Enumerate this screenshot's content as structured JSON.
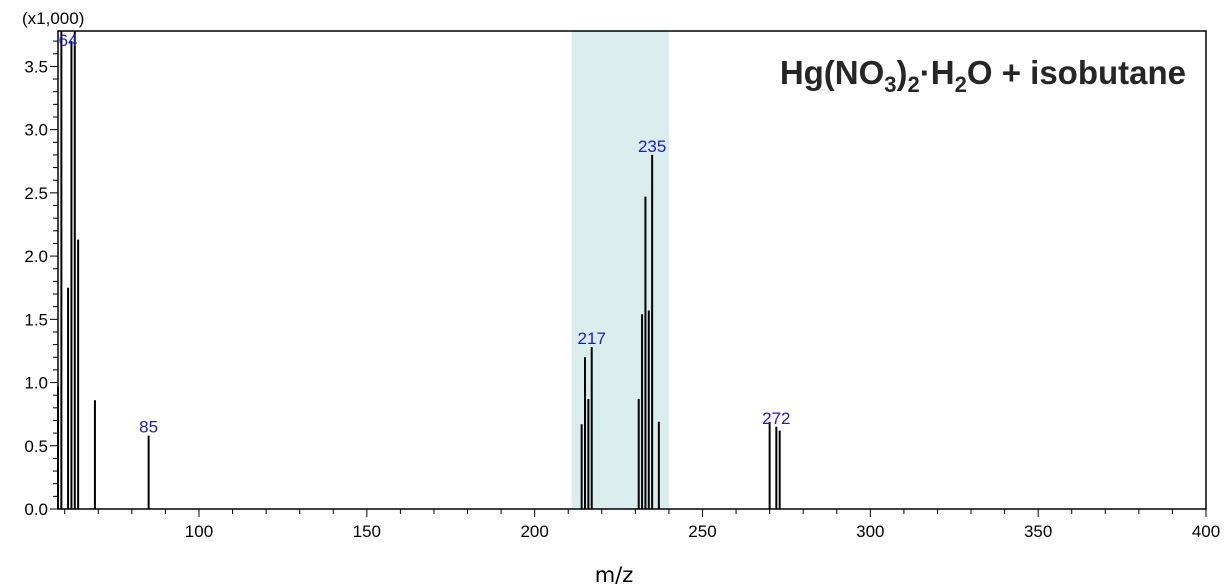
{
  "chart_data": {
    "type": "bar",
    "title_parts": {
      "t1": "Hg(NO",
      "s1": "3",
      "t2": ")",
      "s2": "2",
      "t3": "·H",
      "s3": "2",
      "t4": "O + isobutane"
    },
    "title": "Hg(NO3)2·H2O + isobutane",
    "xlabel": "m/z",
    "ylabel": "",
    "y_multiplier": "(x1,000)",
    "xlim": [
      58,
      400
    ],
    "ylim": [
      0,
      3.78
    ],
    "x_ticks": [
      "100",
      "150",
      "200",
      "250",
      "300",
      "350",
      "400"
    ],
    "y_ticks": [
      "0.0",
      "0.5",
      "1.0",
      "1.5",
      "2.0",
      "2.5",
      "3.0",
      "3.5"
    ],
    "highlight_range": [
      211,
      240
    ],
    "highlight_color": "#d9eeec",
    "peak_label_color": "#1a1ad6",
    "peaks": [
      {
        "x": 58,
        "y": 0.97
      },
      {
        "x": 59,
        "y": 3.78
      },
      {
        "x": 61,
        "y": 1.75
      },
      {
        "x": 62,
        "y": 3.7
      },
      {
        "x": 63,
        "y": 3.78
      },
      {
        "x": 64,
        "y": 2.13
      },
      {
        "x": 69,
        "y": 0.86
      },
      {
        "x": 85,
        "y": 0.58
      },
      {
        "x": 214,
        "y": 0.67
      },
      {
        "x": 215,
        "y": 1.2
      },
      {
        "x": 216,
        "y": 0.87
      },
      {
        "x": 217,
        "y": 1.28
      },
      {
        "x": 231,
        "y": 0.87
      },
      {
        "x": 232,
        "y": 1.54
      },
      {
        "x": 233,
        "y": 2.47
      },
      {
        "x": 234,
        "y": 1.57
      },
      {
        "x": 235,
        "y": 2.8
      },
      {
        "x": 237,
        "y": 0.69
      },
      {
        "x": 270,
        "y": 0.69
      },
      {
        "x": 272,
        "y": 0.65
      },
      {
        "x": 273,
        "y": 0.62
      }
    ],
    "labels": [
      {
        "text": "64",
        "x": 61,
        "y": 3.78
      },
      {
        "text": "85",
        "x": 85,
        "y": 0.58
      },
      {
        "text": "217",
        "x": 217,
        "y": 1.28
      },
      {
        "text": "235",
        "x": 235,
        "y": 2.8
      },
      {
        "text": "272",
        "x": 272,
        "y": 0.65
      }
    ]
  }
}
